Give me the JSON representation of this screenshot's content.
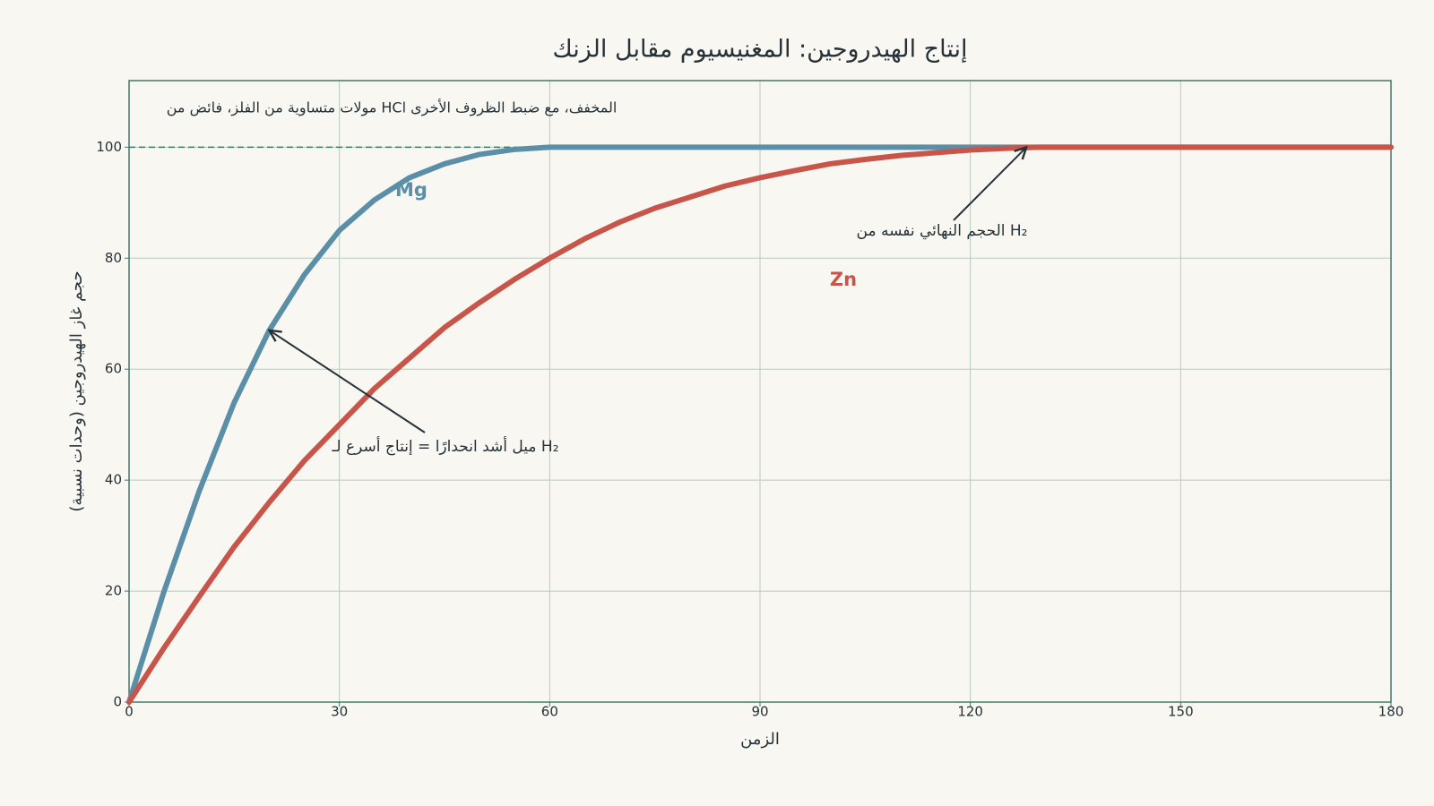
{
  "chart_data": {
    "type": "line",
    "title": "إنتاج الهيدروجين: المغنيسيوم مقابل الزنك",
    "subtitle": "مولات متساوية من الفلز، فائض من HCl المخفف، مع ضبط الظروف الأخرى",
    "x_label": "الزمن",
    "y_label": "حجم غاز الهيدروجين (وحدات نسبية)",
    "x": [
      0,
      5,
      10,
      15,
      20,
      25,
      30,
      35,
      40,
      45,
      50,
      55,
      60,
      65,
      70,
      75,
      80,
      85,
      90,
      95,
      100,
      105,
      110,
      115,
      120,
      125,
      130,
      135,
      140,
      145,
      150,
      155,
      160,
      165,
      170,
      175,
      180
    ],
    "series": [
      {
        "name": "Mg",
        "color": "#5b8fa8",
        "values": [
          0,
          20,
          38,
          54,
          67,
          77,
          85,
          90.5,
          94.5,
          97,
          98.7,
          99.6,
          100,
          100,
          100,
          100,
          100,
          100,
          100,
          100,
          100,
          100,
          100,
          100,
          100,
          100,
          100,
          100,
          100,
          100,
          100,
          100,
          100,
          100,
          100,
          100,
          100
        ]
      },
      {
        "name": "Zn",
        "color": "#c8554a",
        "values": [
          0,
          9.8,
          19,
          28,
          36,
          43.5,
          50,
          56.5,
          62,
          67.5,
          72,
          76.2,
          80,
          83.5,
          86.5,
          89,
          91,
          93,
          94.5,
          95.8,
          97,
          97.8,
          98.5,
          99,
          99.5,
          99.8,
          100,
          100,
          100,
          100,
          100,
          100,
          100,
          100,
          100,
          100,
          100
        ]
      }
    ],
    "xlim": [
      0,
      180
    ],
    "ylim": [
      0,
      112
    ],
    "xticks": [
      0,
      30,
      60,
      90,
      120,
      150,
      180
    ],
    "yticks": [
      0,
      20,
      40,
      60,
      80,
      100
    ],
    "grid": true,
    "reference_line": 100,
    "annotations": [
      {
        "text": "ميل أشد انحدارًا = إنتاج أسرع لـ H₂",
        "target": [
          20,
          67
        ]
      },
      {
        "text": "الحجم النهائي نفسه من H₂",
        "target": [
          128,
          100
        ]
      }
    ]
  }
}
